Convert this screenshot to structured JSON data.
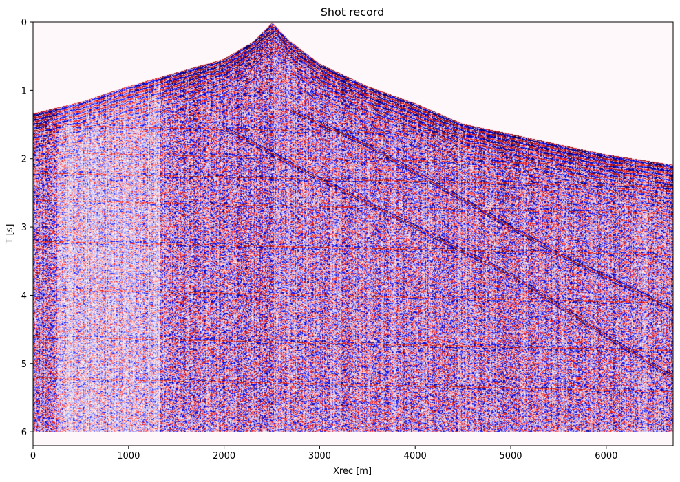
{
  "chart_data": {
    "type": "heatmap",
    "title": "Shot record",
    "xlabel": "Xrec [m]",
    "ylabel": "T [s]",
    "xlim": [
      0,
      6700
    ],
    "ylim": [
      6.2,
      0
    ],
    "x_ticks": [
      0,
      1000,
      2000,
      3000,
      4000,
      5000,
      6000
    ],
    "y_ticks": [
      0,
      1,
      2,
      3,
      4,
      5,
      6
    ],
    "record_end_time": 6.0,
    "colormap": "seismic (blue-white-red)",
    "colors": {
      "negative": "#0000b4",
      "zero": "#ffffff",
      "positive": "#e61414",
      "background": "#fff8fb"
    },
    "first_break_curve": {
      "x": [
        0,
        500,
        1000,
        1500,
        2000,
        2300,
        2500,
        2700,
        3000,
        3500,
        4000,
        4500,
        5000,
        5500,
        6000,
        6700
      ],
      "t": [
        1.35,
        1.18,
        0.95,
        0.75,
        0.55,
        0.3,
        0.02,
        0.3,
        0.62,
        0.95,
        1.2,
        1.5,
        1.65,
        1.8,
        1.95,
        2.1
      ]
    },
    "dipping_events": [
      {
        "x": [
          2000,
          3000,
          4000,
          5000,
          6000,
          6700
        ],
        "t": [
          1.55,
          2.3,
          3.0,
          3.7,
          4.6,
          5.2
        ]
      },
      {
        "x": [
          2700,
          3500,
          4500,
          5500,
          6700
        ],
        "t": [
          1.3,
          1.8,
          2.6,
          3.4,
          4.2
        ]
      }
    ],
    "flat_event_times": [
      1.6,
      2.0,
      2.3,
      2.7,
      3.3,
      4.0,
      4.7,
      5.3
    ]
  }
}
